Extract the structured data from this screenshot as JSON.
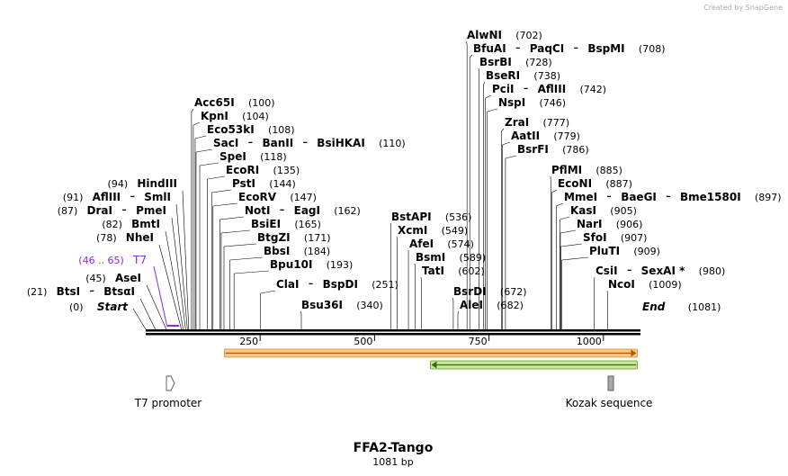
{
  "credit": "Created by SnapGene",
  "title": "FFA2-Tango",
  "subtitle": "1081 bp",
  "seq_length": 1081,
  "colors": {
    "orf_fill": "#f7c98a",
    "orf_stroke": "#d98c1f",
    "orf_arrow": "#b35a00",
    "orf2_fill": "#cde59a",
    "orf2_stroke": "#5a9a16",
    "orf2_arrow": "#2e6e10",
    "primer": "#8b2be2"
  },
  "axis_ticks": [
    {
      "value": 250,
      "label": "250"
    },
    {
      "value": 500,
      "label": "500"
    },
    {
      "value": 750,
      "label": "750"
    },
    {
      "value": 1000,
      "label": "1000"
    }
  ],
  "start_label": "Start",
  "start_pos": "(0)",
  "end_label": "End",
  "end_pos": "(1081)",
  "primer": {
    "label": "T7",
    "range": "(46 .. 65)",
    "start": 46,
    "end": 65
  },
  "orfs": [
    {
      "name": "orange-orf",
      "start": 172,
      "end": 1074,
      "direction": "forward"
    },
    {
      "name": "green-orf",
      "start": 622,
      "end": 1074,
      "direction": "reverse"
    }
  ],
  "features": [
    {
      "name": "t7-promoter",
      "label": "T7 promoter",
      "pos": 50,
      "shape": "arrow"
    },
    {
      "name": "kozak-sequence",
      "label": "Kozak sequence",
      "pos": 1012,
      "shape": "box"
    }
  ],
  "sites": [
    {
      "names": [
        "BtsI",
        "BtsαI"
      ],
      "pos": "(21)",
      "at": 21,
      "side": "left"
    },
    {
      "names": [
        "AseI"
      ],
      "pos": "(45)",
      "at": 45,
      "side": "left"
    },
    {
      "names": [
        "NheI"
      ],
      "pos": "(78)",
      "at": 78,
      "side": "left"
    },
    {
      "names": [
        "BmtI"
      ],
      "pos": "(82)",
      "at": 82,
      "side": "left"
    },
    {
      "names": [
        "DraI",
        "PmeI"
      ],
      "pos": "(87)",
      "at": 87,
      "side": "left"
    },
    {
      "names": [
        "AflIII",
        "SmlI"
      ],
      "pos": "(91)",
      "at": 91,
      "side": "left"
    },
    {
      "names": [
        "HindIII"
      ],
      "pos": "(94)",
      "at": 94,
      "side": "left"
    },
    {
      "names": [
        "Acc65I"
      ],
      "pos": "(100)",
      "at": 100,
      "side": "right"
    },
    {
      "names": [
        "KpnI"
      ],
      "pos": "(104)",
      "at": 104,
      "side": "right"
    },
    {
      "names": [
        "Eco53kI"
      ],
      "pos": "(108)",
      "at": 108,
      "side": "right"
    },
    {
      "names": [
        "SacI",
        "BanII",
        "BsiHKAI"
      ],
      "pos": "(110)",
      "at": 110,
      "side": "right"
    },
    {
      "names": [
        "SpeI"
      ],
      "pos": "(118)",
      "at": 118,
      "side": "right"
    },
    {
      "names": [
        "EcoRI"
      ],
      "pos": "(135)",
      "at": 135,
      "side": "right"
    },
    {
      "names": [
        "PstI"
      ],
      "pos": "(144)",
      "at": 144,
      "side": "right"
    },
    {
      "names": [
        "EcoRV"
      ],
      "pos": "(147)",
      "at": 147,
      "side": "right"
    },
    {
      "names": [
        "NotI",
        "EagI"
      ],
      "pos": "(162)",
      "at": 162,
      "side": "right"
    },
    {
      "names": [
        "BsiEI"
      ],
      "pos": "(165)",
      "at": 165,
      "side": "right"
    },
    {
      "names": [
        "BtgZI"
      ],
      "pos": "(171)",
      "at": 171,
      "side": "right"
    },
    {
      "names": [
        "BbsI"
      ],
      "pos": "(184)",
      "at": 184,
      "side": "right"
    },
    {
      "names": [
        "Bpu10I"
      ],
      "pos": "(193)",
      "at": 193,
      "side": "right"
    },
    {
      "names": [
        "ClaI",
        "BspDI"
      ],
      "pos": "(251)",
      "at": 251,
      "side": "right"
    },
    {
      "names": [
        "Bsu36I"
      ],
      "pos": "(340)",
      "at": 340,
      "side": "right"
    },
    {
      "names": [
        "BstAPI"
      ],
      "pos": "(536)",
      "at": 536,
      "side": "right"
    },
    {
      "names": [
        "XcmI"
      ],
      "pos": "(549)",
      "at": 549,
      "side": "right"
    },
    {
      "names": [
        "AfeI"
      ],
      "pos": "(574)",
      "at": 574,
      "side": "right"
    },
    {
      "names": [
        "BsmI"
      ],
      "pos": "(589)",
      "at": 589,
      "side": "right"
    },
    {
      "names": [
        "TatI"
      ],
      "pos": "(602)",
      "at": 602,
      "side": "right"
    },
    {
      "names": [
        "BsrDI"
      ],
      "pos": "(672)",
      "at": 672,
      "side": "right"
    },
    {
      "names": [
        "AleI"
      ],
      "pos": "(682)",
      "at": 682,
      "side": "right"
    },
    {
      "names": [
        "AlwNI"
      ],
      "pos": "(702)",
      "at": 702,
      "side": "right"
    },
    {
      "names": [
        "BfuAI",
        "PaqCI",
        "BspMI"
      ],
      "pos": "(708)",
      "at": 708,
      "side": "right"
    },
    {
      "names": [
        "BsrBI"
      ],
      "pos": "(728)",
      "at": 728,
      "side": "right"
    },
    {
      "names": [
        "BseRI"
      ],
      "pos": "(738)",
      "at": 738,
      "side": "right"
    },
    {
      "names": [
        "PciI",
        "AflIII"
      ],
      "pos": "(742)",
      "at": 742,
      "side": "right"
    },
    {
      "names": [
        "NspI"
      ],
      "pos": "(746)",
      "at": 746,
      "side": "right"
    },
    {
      "names": [
        "ZraI"
      ],
      "pos": "(777)",
      "at": 777,
      "side": "right"
    },
    {
      "names": [
        "AatII"
      ],
      "pos": "(779)",
      "at": 779,
      "side": "right"
    },
    {
      "names": [
        "BsrFI"
      ],
      "pos": "(786)",
      "at": 786,
      "side": "right"
    },
    {
      "names": [
        "PflMI"
      ],
      "pos": "(885)",
      "at": 885,
      "side": "right"
    },
    {
      "names": [
        "EcoNI"
      ],
      "pos": "(887)",
      "at": 887,
      "side": "right"
    },
    {
      "names": [
        "MmeI",
        "BaeGI",
        "Bme1580I"
      ],
      "pos": "(897)",
      "at": 897,
      "side": "right"
    },
    {
      "names": [
        "KasI"
      ],
      "pos": "(905)",
      "at": 905,
      "side": "right"
    },
    {
      "names": [
        "NarI"
      ],
      "pos": "(906)",
      "at": 906,
      "side": "right"
    },
    {
      "names": [
        "SfoI"
      ],
      "pos": "(907)",
      "at": 907,
      "side": "right"
    },
    {
      "names": [
        "PluTI"
      ],
      "pos": "(909)",
      "at": 909,
      "side": "right"
    },
    {
      "names": [
        "CsiI",
        "SexAI *"
      ],
      "pos": "(980)",
      "at": 980,
      "side": "right"
    },
    {
      "names": [
        "NcoI"
      ],
      "pos": "(1009)",
      "at": 1009,
      "side": "right"
    }
  ]
}
